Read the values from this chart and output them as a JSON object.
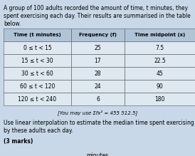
{
  "title_line1": "A group of 100 adults recorded the amount of time, t minutes, they",
  "title_line2": "spent exercising each day. Their results are summarised in the table",
  "title_line3": "below.",
  "col1_header": "Time (t minutes)",
  "col2_header": "Frequency (f)",
  "col3_header": "Time midpoint (x)",
  "rows": [
    [
      "0 ≤ t < 15",
      "25",
      "7.5"
    ],
    [
      "15 ≤ t < 30",
      "17",
      "22.5"
    ],
    [
      "30 ≤ t < 60",
      "28",
      "45"
    ],
    [
      "60 ≤ t < 120",
      "24",
      "90"
    ],
    [
      "120 ≤ t < 240",
      "6",
      "180"
    ]
  ],
  "hint": "[You may use Σfx² = 455 512.5]",
  "question_line1": "Use linear interpolation to estimate the median time spent exercising",
  "question_line2": "by these adults each day.",
  "marks": "(3 marks)",
  "footer": "minutes",
  "bg_color": "#c8d8e8",
  "header_bg": "#b0c4d8",
  "cell_bg": "#dde8f0",
  "font_size": 5.5,
  "font_size_sm": 5.0
}
